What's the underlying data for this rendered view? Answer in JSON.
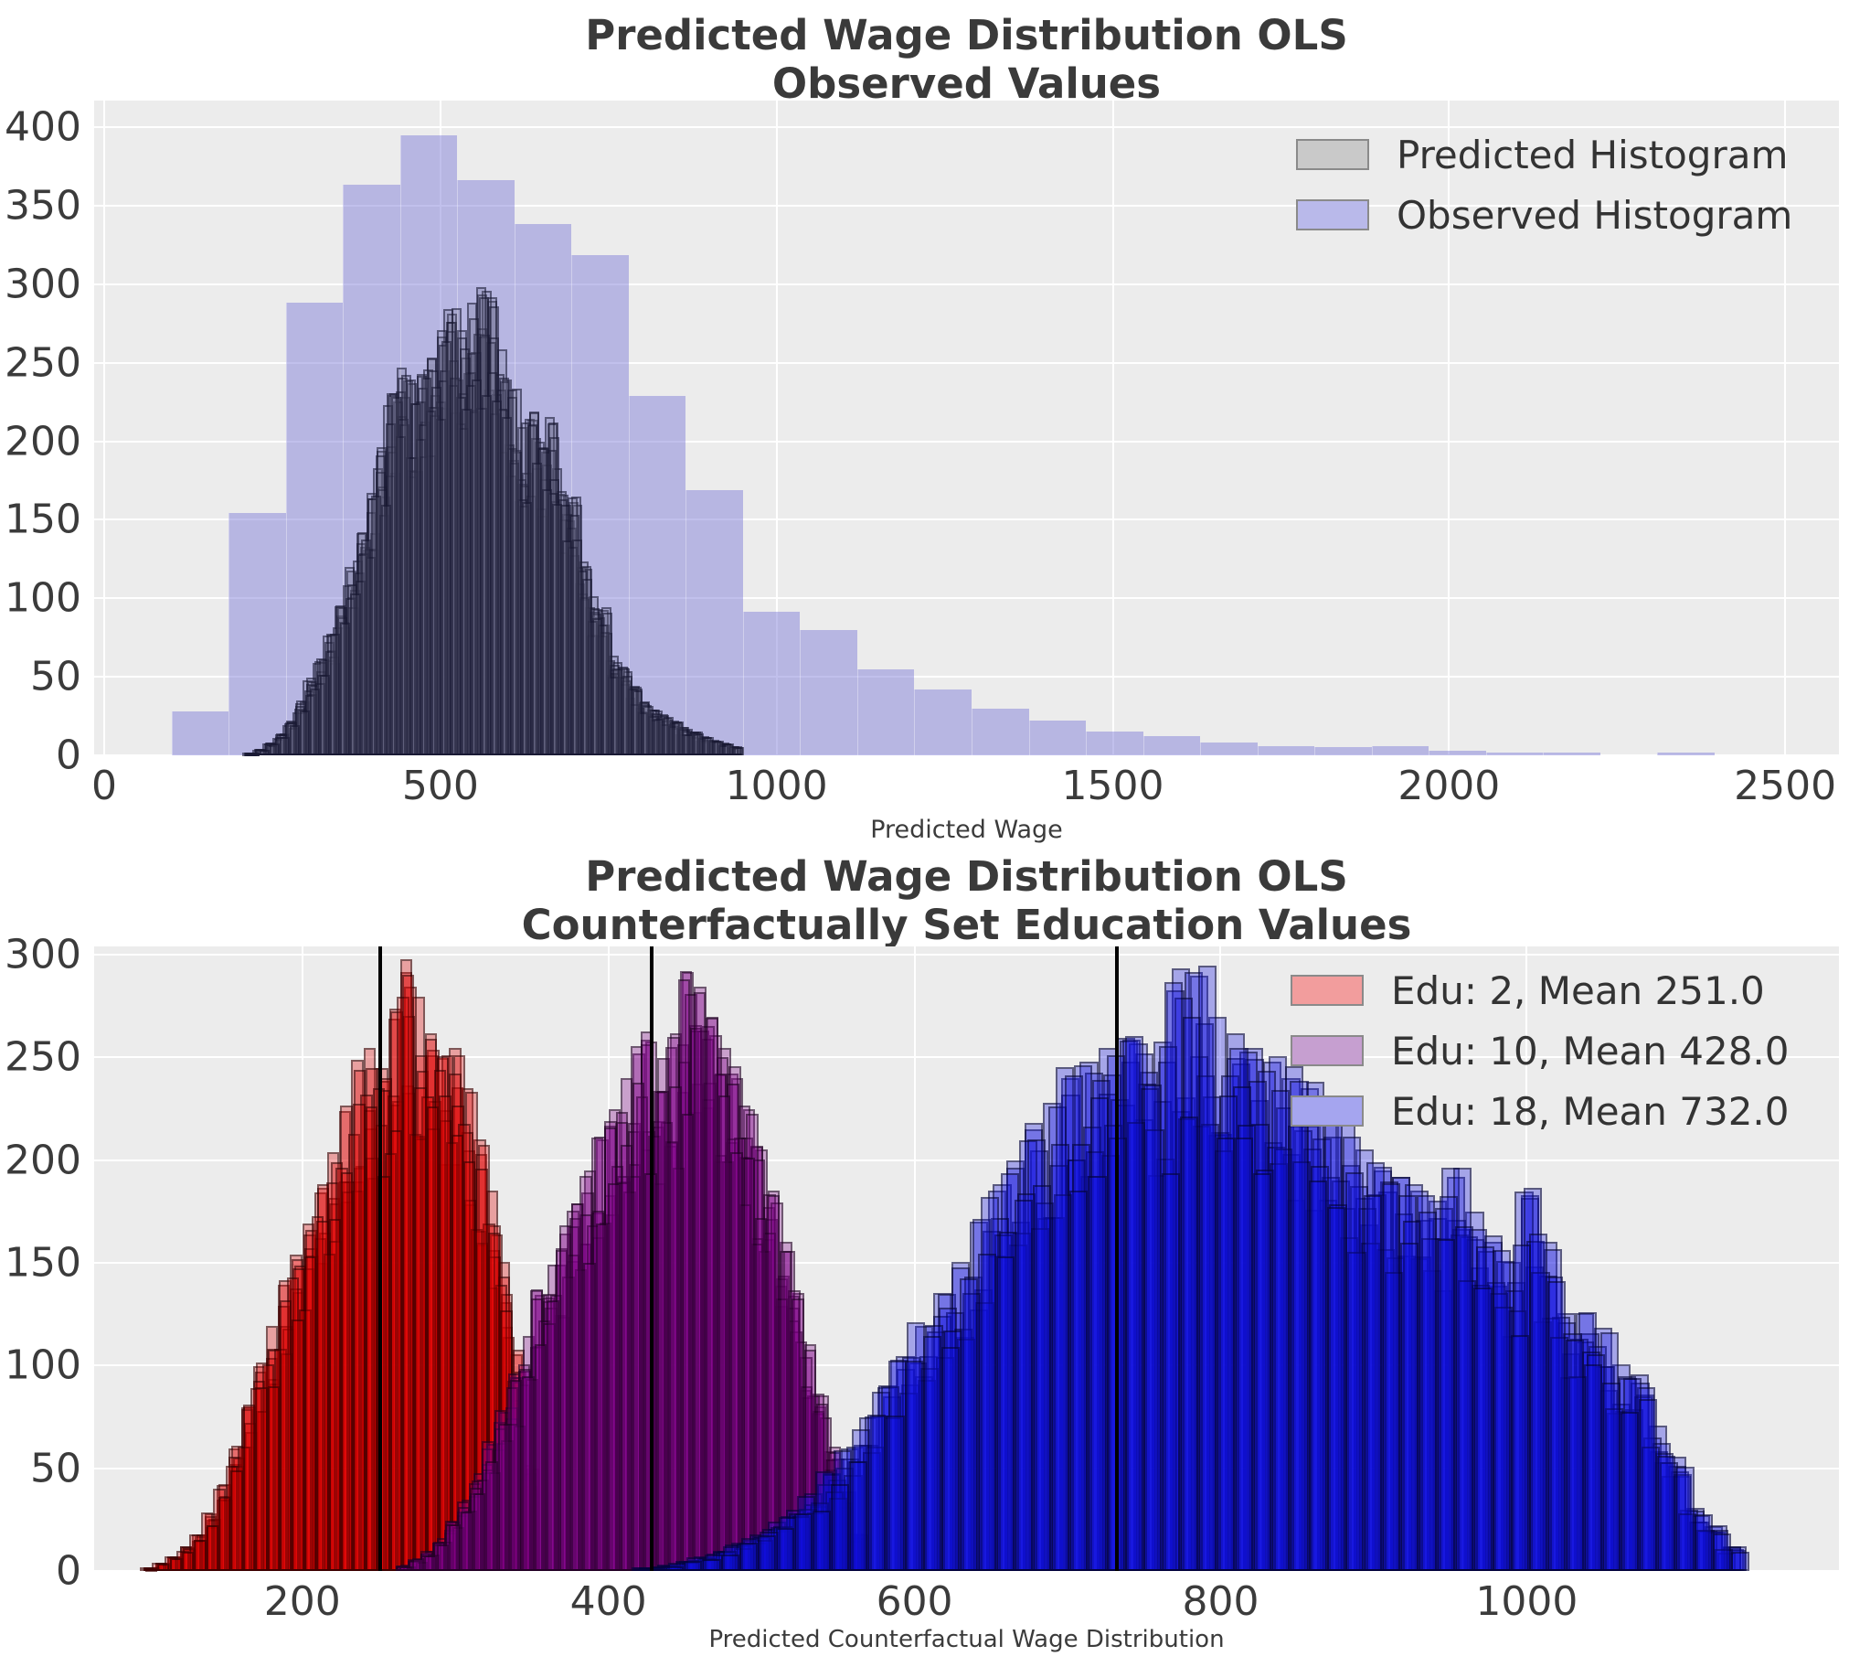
{
  "figure": {
    "background": "#ffffff",
    "plot_background": "#ececec",
    "grid_color": "#ffffff",
    "text_color": "#3b3b3b"
  },
  "chart_data": [
    {
      "type": "bar",
      "subtype": "overlaid-histograms",
      "title_line1": "Predicted Wage Distribution OLS",
      "title_line2": "Observed Values",
      "xlabel": "Predicted Wage",
      "ylabel": "",
      "xticks": [
        0,
        500,
        1000,
        1500,
        2000,
        2500
      ],
      "yticks": [
        0,
        50,
        100,
        150,
        200,
        250,
        300,
        350,
        400
      ],
      "xlim": [
        -15,
        2580
      ],
      "ylim": [
        0,
        417
      ],
      "grid": true,
      "legend_position": "upper right",
      "legend": {
        "entries": [
          {
            "label": "Predicted Histogram",
            "swatch": "#c9c9c9"
          },
          {
            "label": "Observed Histogram",
            "swatch": "#b9b9ea"
          }
        ]
      },
      "series": [
        {
          "name": "Observed Histogram",
          "bin_start": 100,
          "bin_width": 85,
          "fill": "rgba(125,123,215,0.48)",
          "edge": "none",
          "overlay_runs": 1,
          "heights": [
            28,
            155,
            290,
            365,
            397,
            368,
            340,
            320,
            230,
            170,
            92,
            80,
            55,
            42,
            30,
            22,
            15,
            12,
            8,
            6,
            5,
            6,
            3,
            2,
            2,
            1,
            2
          ]
        },
        {
          "name": "Predicted Histogram",
          "bin_start": 210,
          "bin_width": 15,
          "fill": "rgba(100,100,128,0.22)",
          "edge": "rgba(10,10,35,0.5)",
          "overlay_runs": 10,
          "heights": [
            2,
            4,
            8,
            14,
            22,
            35,
            50,
            62,
            78,
            95,
            118,
            142,
            168,
            195,
            232,
            248,
            238,
            244,
            254,
            268,
            283,
            272,
            290,
            295,
            291,
            260,
            234,
            210,
            215,
            197,
            213,
            167,
            162,
            124,
            102,
            93,
            64,
            56,
            44,
            34,
            29,
            26,
            22,
            18,
            15,
            12,
            10,
            8,
            6
          ]
        }
      ]
    },
    {
      "type": "bar",
      "subtype": "overlaid-histograms",
      "title_line1": "Predicted Wage Distribution OLS",
      "title_line2": "Counterfactually Set Education Values",
      "xlabel": "Predicted Counterfactual Wage Distribution",
      "ylabel": "",
      "xticks": [
        200,
        400,
        600,
        800,
        1000
      ],
      "yticks": [
        0,
        50,
        100,
        150,
        200,
        250,
        300
      ],
      "xlim": [
        64,
        1204
      ],
      "ylim": [
        0,
        304
      ],
      "grid": true,
      "legend_position": "upper right",
      "legend": {
        "entries": [
          {
            "label": "Edu: 2, Mean 251.0",
            "swatch": "#f29d9d"
          },
          {
            "label": "Edu: 10, Mean 428.0",
            "swatch": "#c69fd0"
          },
          {
            "label": "Edu: 18, Mean 732.0",
            "swatch": "#a5a5ef"
          }
        ]
      },
      "mean_lines": [
        251.0,
        428.0,
        732.0
      ],
      "series": [
        {
          "name": "Edu: 2",
          "mean": 251.0,
          "bin_start": 96,
          "bin_width": 8,
          "fill": "rgba(225,0,0,0.32)",
          "edge": "rgba(0,0,0,0.45)",
          "overlay_runs": 8,
          "heights": [
            2,
            4,
            7,
            12,
            18,
            28,
            42,
            60,
            80,
            100,
            120,
            140,
            155,
            170,
            185,
            205,
            225,
            250,
            256,
            246,
            270,
            293,
            281,
            263,
            251,
            256,
            236,
            211,
            186,
            151,
            106,
            52
          ]
        },
        {
          "name": "Edu: 10",
          "mean": 428.0,
          "bin_start": 264,
          "bin_width": 8,
          "fill": "rgba(128,0,138,0.32)",
          "edge": "rgba(0,0,0,0.45)",
          "overlay_runs": 8,
          "heights": [
            3,
            6,
            10,
            16,
            24,
            35,
            48,
            62,
            78,
            95,
            115,
            135,
            150,
            165,
            180,
            196,
            211,
            226,
            241,
            253,
            259,
            251,
            263,
            293,
            286,
            271,
            256,
            241,
            226,
            206,
            186,
            161,
            136,
            111,
            86,
            61,
            39,
            18
          ]
        },
        {
          "name": "Edu: 18",
          "mean": 732.0,
          "bin_start": 420,
          "bin_width": 12,
          "fill": "rgba(15,15,225,0.32)",
          "edge": "rgba(0,0,0,0.45)",
          "overlay_runs": 8,
          "heights": [
            2,
            3,
            5,
            7,
            10,
            14,
            18,
            24,
            30,
            38,
            48,
            60,
            75,
            90,
            105,
            120,
            136,
            151,
            171,
            186,
            201,
            216,
            229,
            241,
            249,
            256,
            261,
            253,
            259,
            295,
            291,
            271,
            263,
            256,
            249,
            241,
            236,
            229,
            219,
            206,
            196,
            193,
            186,
            181,
            193,
            176,
            161,
            151,
            184,
            161,
            126,
            126,
            119,
            101,
            96,
            71,
            56,
            31,
            22,
            12
          ]
        }
      ]
    }
  ]
}
